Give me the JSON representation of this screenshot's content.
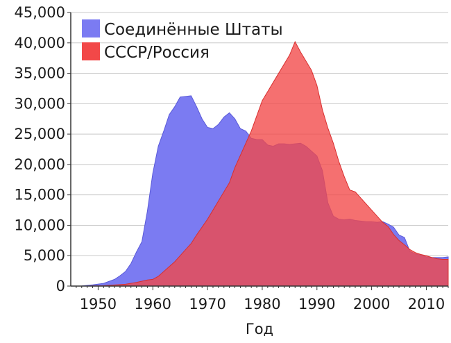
{
  "chart_data": {
    "type": "area",
    "title": "",
    "xlabel": "Год",
    "ylabel": "",
    "xlim": [
      1945,
      2014
    ],
    "ylim": [
      0,
      45000
    ],
    "legend_position": "top-left",
    "grid": {
      "horizontal": true,
      "vertical": false
    },
    "x_ticks": [
      "1950",
      "1960",
      "1970",
      "1980",
      "1990",
      "2000",
      "2010"
    ],
    "y_ticks": [
      "0",
      "5,000",
      "10,000",
      "15,000",
      "20,000",
      "25,000",
      "30,000",
      "35,000",
      "40,000",
      "45,000"
    ],
    "series": [
      {
        "name": "Соединённые Штаты",
        "color": "#7b7bf2",
        "points": [
          [
            1945,
            0
          ],
          [
            1947,
            20
          ],
          [
            1949,
            200
          ],
          [
            1951,
            450
          ],
          [
            1953,
            1100
          ],
          [
            1954,
            1700
          ],
          [
            1955,
            2400
          ],
          [
            1956,
            3700
          ],
          [
            1957,
            5600
          ],
          [
            1958,
            7300
          ],
          [
            1959,
            12300
          ],
          [
            1960,
            18600
          ],
          [
            1961,
            23000
          ],
          [
            1962,
            25500
          ],
          [
            1963,
            28200
          ],
          [
            1964,
            29500
          ],
          [
            1965,
            31100
          ],
          [
            1966,
            31200
          ],
          [
            1967,
            31300
          ],
          [
            1968,
            29500
          ],
          [
            1969,
            27500
          ],
          [
            1970,
            26100
          ],
          [
            1971,
            25900
          ],
          [
            1972,
            26600
          ],
          [
            1973,
            27800
          ],
          [
            1974,
            28500
          ],
          [
            1975,
            27500
          ],
          [
            1976,
            25900
          ],
          [
            1977,
            25500
          ],
          [
            1978,
            24300
          ],
          [
            1979,
            24100
          ],
          [
            1980,
            24100
          ],
          [
            1981,
            23200
          ],
          [
            1982,
            23000
          ],
          [
            1983,
            23400
          ],
          [
            1984,
            23400
          ],
          [
            1985,
            23300
          ],
          [
            1986,
            23400
          ],
          [
            1987,
            23500
          ],
          [
            1988,
            23000
          ],
          [
            1989,
            22200
          ],
          [
            1990,
            21400
          ],
          [
            1991,
            19000
          ],
          [
            1992,
            13700
          ],
          [
            1993,
            11500
          ],
          [
            1994,
            11000
          ],
          [
            1995,
            10900
          ],
          [
            1996,
            11000
          ],
          [
            1997,
            10800
          ],
          [
            1998,
            10700
          ],
          [
            1999,
            10600
          ],
          [
            2000,
            10600
          ],
          [
            2001,
            10500
          ],
          [
            2002,
            10600
          ],
          [
            2003,
            10200
          ],
          [
            2004,
            9700
          ],
          [
            2005,
            8400
          ],
          [
            2006,
            8000
          ],
          [
            2007,
            5700
          ],
          [
            2008,
            5300
          ],
          [
            2009,
            5100
          ],
          [
            2010,
            4800
          ],
          [
            2011,
            4700
          ],
          [
            2012,
            4700
          ],
          [
            2013,
            4700
          ],
          [
            2014,
            4800
          ]
        ]
      },
      {
        "name": "СССР/Россия",
        "color": "#f24848",
        "points": [
          [
            1945,
            0
          ],
          [
            1948,
            0
          ],
          [
            1949,
            30
          ],
          [
            1951,
            60
          ],
          [
            1953,
            180
          ],
          [
            1955,
            300
          ],
          [
            1957,
            600
          ],
          [
            1958,
            800
          ],
          [
            1959,
            1000
          ],
          [
            1960,
            1100
          ],
          [
            1961,
            1600
          ],
          [
            1962,
            2400
          ],
          [
            1963,
            3200
          ],
          [
            1964,
            4000
          ],
          [
            1965,
            5000
          ],
          [
            1966,
            6000
          ],
          [
            1967,
            7000
          ],
          [
            1968,
            8400
          ],
          [
            1969,
            9700
          ],
          [
            1970,
            11000
          ],
          [
            1971,
            12500
          ],
          [
            1972,
            14000
          ],
          [
            1973,
            15500
          ],
          [
            1974,
            17000
          ],
          [
            1975,
            19500
          ],
          [
            1976,
            21500
          ],
          [
            1977,
            23500
          ],
          [
            1978,
            25500
          ],
          [
            1979,
            28000
          ],
          [
            1980,
            30500
          ],
          [
            1981,
            32000
          ],
          [
            1982,
            33500
          ],
          [
            1983,
            35000
          ],
          [
            1984,
            36500
          ],
          [
            1985,
            38000
          ],
          [
            1986,
            40200
          ],
          [
            1987,
            38500
          ],
          [
            1988,
            37000
          ],
          [
            1989,
            35500
          ],
          [
            1990,
            33000
          ],
          [
            1991,
            29000
          ],
          [
            1992,
            26000
          ],
          [
            1993,
            23500
          ],
          [
            1994,
            20500
          ],
          [
            1995,
            18000
          ],
          [
            1996,
            15800
          ],
          [
            1997,
            15500
          ],
          [
            1998,
            14500
          ],
          [
            1999,
            13500
          ],
          [
            2000,
            12500
          ],
          [
            2001,
            11500
          ],
          [
            2002,
            10500
          ],
          [
            2003,
            9800
          ],
          [
            2004,
            8500
          ],
          [
            2005,
            7500
          ],
          [
            2006,
            6800
          ],
          [
            2007,
            6000
          ],
          [
            2008,
            5500
          ],
          [
            2009,
            5200
          ],
          [
            2010,
            5000
          ],
          [
            2011,
            4700
          ],
          [
            2012,
            4500
          ],
          [
            2013,
            4400
          ],
          [
            2014,
            4400
          ]
        ]
      }
    ]
  }
}
